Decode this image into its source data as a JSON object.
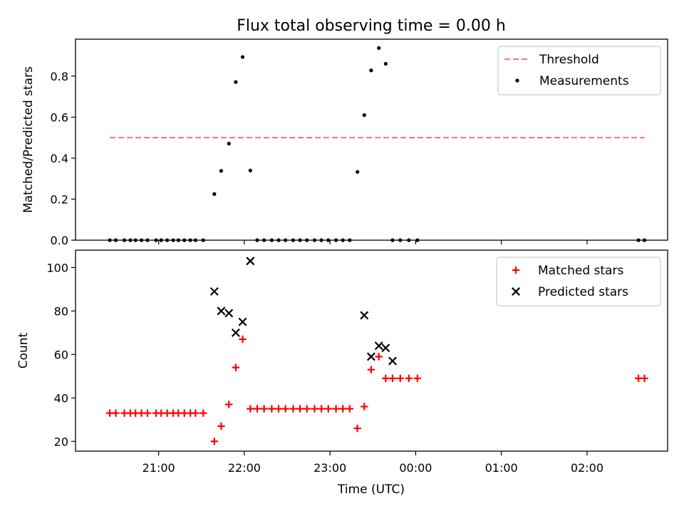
{
  "title": "Flux total observing time = 0.00 h",
  "x_axis": {
    "label": "Time (UTC)",
    "range_hours": [
      20.03,
      26.94
    ],
    "ticks": [
      {
        "value": 21,
        "label": "21:00"
      },
      {
        "value": 22,
        "label": "22:00"
      },
      {
        "value": 23,
        "label": "23:00"
      },
      {
        "value": 24,
        "label": "00:00"
      },
      {
        "value": 25,
        "label": "01:00"
      },
      {
        "value": 26,
        "label": "02:00"
      }
    ]
  },
  "chart_data": [
    {
      "type": "scatter",
      "ylabel": "Matched/Predicted stars",
      "ylim": [
        0,
        0.98
      ],
      "yticks": [
        {
          "value": 0.0,
          "label": "0.0"
        },
        {
          "value": 0.2,
          "label": "0.2"
        },
        {
          "value": 0.4,
          "label": "0.4"
        },
        {
          "value": 0.6,
          "label": "0.6"
        },
        {
          "value": 0.8,
          "label": "0.8"
        }
      ],
      "legend_position": "top-right",
      "threshold": {
        "name": "Threshold",
        "value": 0.5,
        "x": [
          20.43,
          26.67
        ],
        "color": "#f08080"
      },
      "series": [
        {
          "name": "Measurements",
          "marker": "dot",
          "color": "#000000",
          "x": [
            20.43,
            20.5,
            20.6,
            20.67,
            20.73,
            20.8,
            20.87,
            20.97,
            21.03,
            21.1,
            21.17,
            21.23,
            21.3,
            21.37,
            21.43,
            21.52,
            21.65,
            21.73,
            21.82,
            21.9,
            21.98,
            22.07,
            22.15,
            22.23,
            22.32,
            22.4,
            22.48,
            22.57,
            22.65,
            22.73,
            22.82,
            22.9,
            22.98,
            23.07,
            23.15,
            23.23,
            23.32,
            23.4,
            23.48,
            23.57,
            23.65,
            23.73,
            23.82,
            23.92,
            24.02,
            26.6,
            26.67
          ],
          "y": [
            0,
            0,
            0,
            0,
            0,
            0,
            0,
            0,
            0,
            0,
            0,
            0,
            0,
            0,
            0,
            0,
            0.225,
            0.338,
            0.471,
            0.771,
            0.893,
            0.34,
            0,
            0,
            0,
            0,
            0,
            0,
            0,
            0,
            0,
            0,
            0,
            0,
            0,
            0,
            0.333,
            0.61,
            0.828,
            0.937,
            0.86,
            0,
            0,
            0,
            0,
            0,
            0
          ]
        }
      ]
    },
    {
      "type": "scatter",
      "ylabel": "Count",
      "ylim": [
        15.5,
        108
      ],
      "yticks": [
        {
          "value": 20,
          "label": "20"
        },
        {
          "value": 40,
          "label": "40"
        },
        {
          "value": 60,
          "label": "60"
        },
        {
          "value": 80,
          "label": "80"
        },
        {
          "value": 100,
          "label": "100"
        }
      ],
      "legend_position": "top-right",
      "series": [
        {
          "name": "Matched stars",
          "marker": "plus",
          "color": "#ff0000",
          "x": [
            20.43,
            20.5,
            20.6,
            20.67,
            20.73,
            20.8,
            20.87,
            20.97,
            21.03,
            21.1,
            21.17,
            21.23,
            21.3,
            21.37,
            21.43,
            21.52,
            21.65,
            21.73,
            21.82,
            21.9,
            21.98,
            22.07,
            22.15,
            22.23,
            22.32,
            22.4,
            22.48,
            22.57,
            22.65,
            22.73,
            22.82,
            22.9,
            22.98,
            23.07,
            23.15,
            23.23,
            23.32,
            23.4,
            23.48,
            23.57,
            23.65,
            23.73,
            23.82,
            23.92,
            24.02,
            26.6,
            26.67
          ],
          "y": [
            33,
            33,
            33,
            33,
            33,
            33,
            33,
            33,
            33,
            33,
            33,
            33,
            33,
            33,
            33,
            33,
            20,
            27,
            37,
            54,
            67,
            35,
            35,
            35,
            35,
            35,
            35,
            35,
            35,
            35,
            35,
            35,
            35,
            35,
            35,
            35,
            26,
            36,
            53,
            59,
            49,
            49,
            49,
            49,
            49,
            49,
            49
          ]
        },
        {
          "name": "Predicted stars",
          "marker": "x",
          "color": "#000000",
          "x": [
            21.65,
            21.73,
            21.82,
            21.9,
            21.98,
            22.07,
            23.4,
            23.48,
            23.57,
            23.65,
            23.73
          ],
          "y": [
            89,
            80,
            79,
            70,
            75,
            103,
            78,
            59,
            64,
            63,
            57
          ]
        }
      ]
    }
  ]
}
